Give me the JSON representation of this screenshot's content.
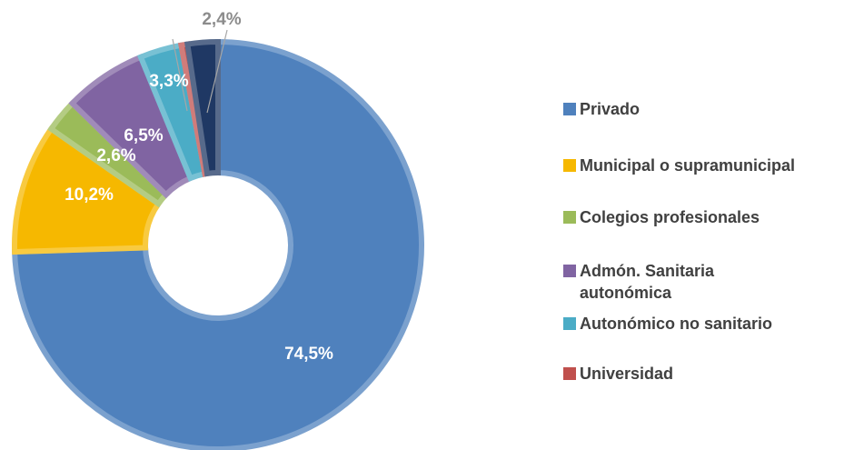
{
  "chart_data": {
    "type": "donut",
    "categories": [
      "Privado",
      "Municipal o supramunicipal",
      "Colegios profesionales",
      "Admón. Sanitaria autonómica",
      "Autonómico no sanitario",
      "Universidad",
      null
    ],
    "values": [
      74.5,
      10.2,
      2.6,
      6.5,
      3.3,
      0.5,
      2.4
    ],
    "value_labels": [
      "74,5%",
      "10,2%",
      "2,6%",
      "6,5%",
      "3,3%",
      null,
      "2,4%"
    ],
    "colors": [
      "#4f81bd",
      "#f6b800",
      "#9bbb59",
      "#8064a2",
      "#4bacc6",
      "#c0504d",
      "#1f3864"
    ]
  }
}
